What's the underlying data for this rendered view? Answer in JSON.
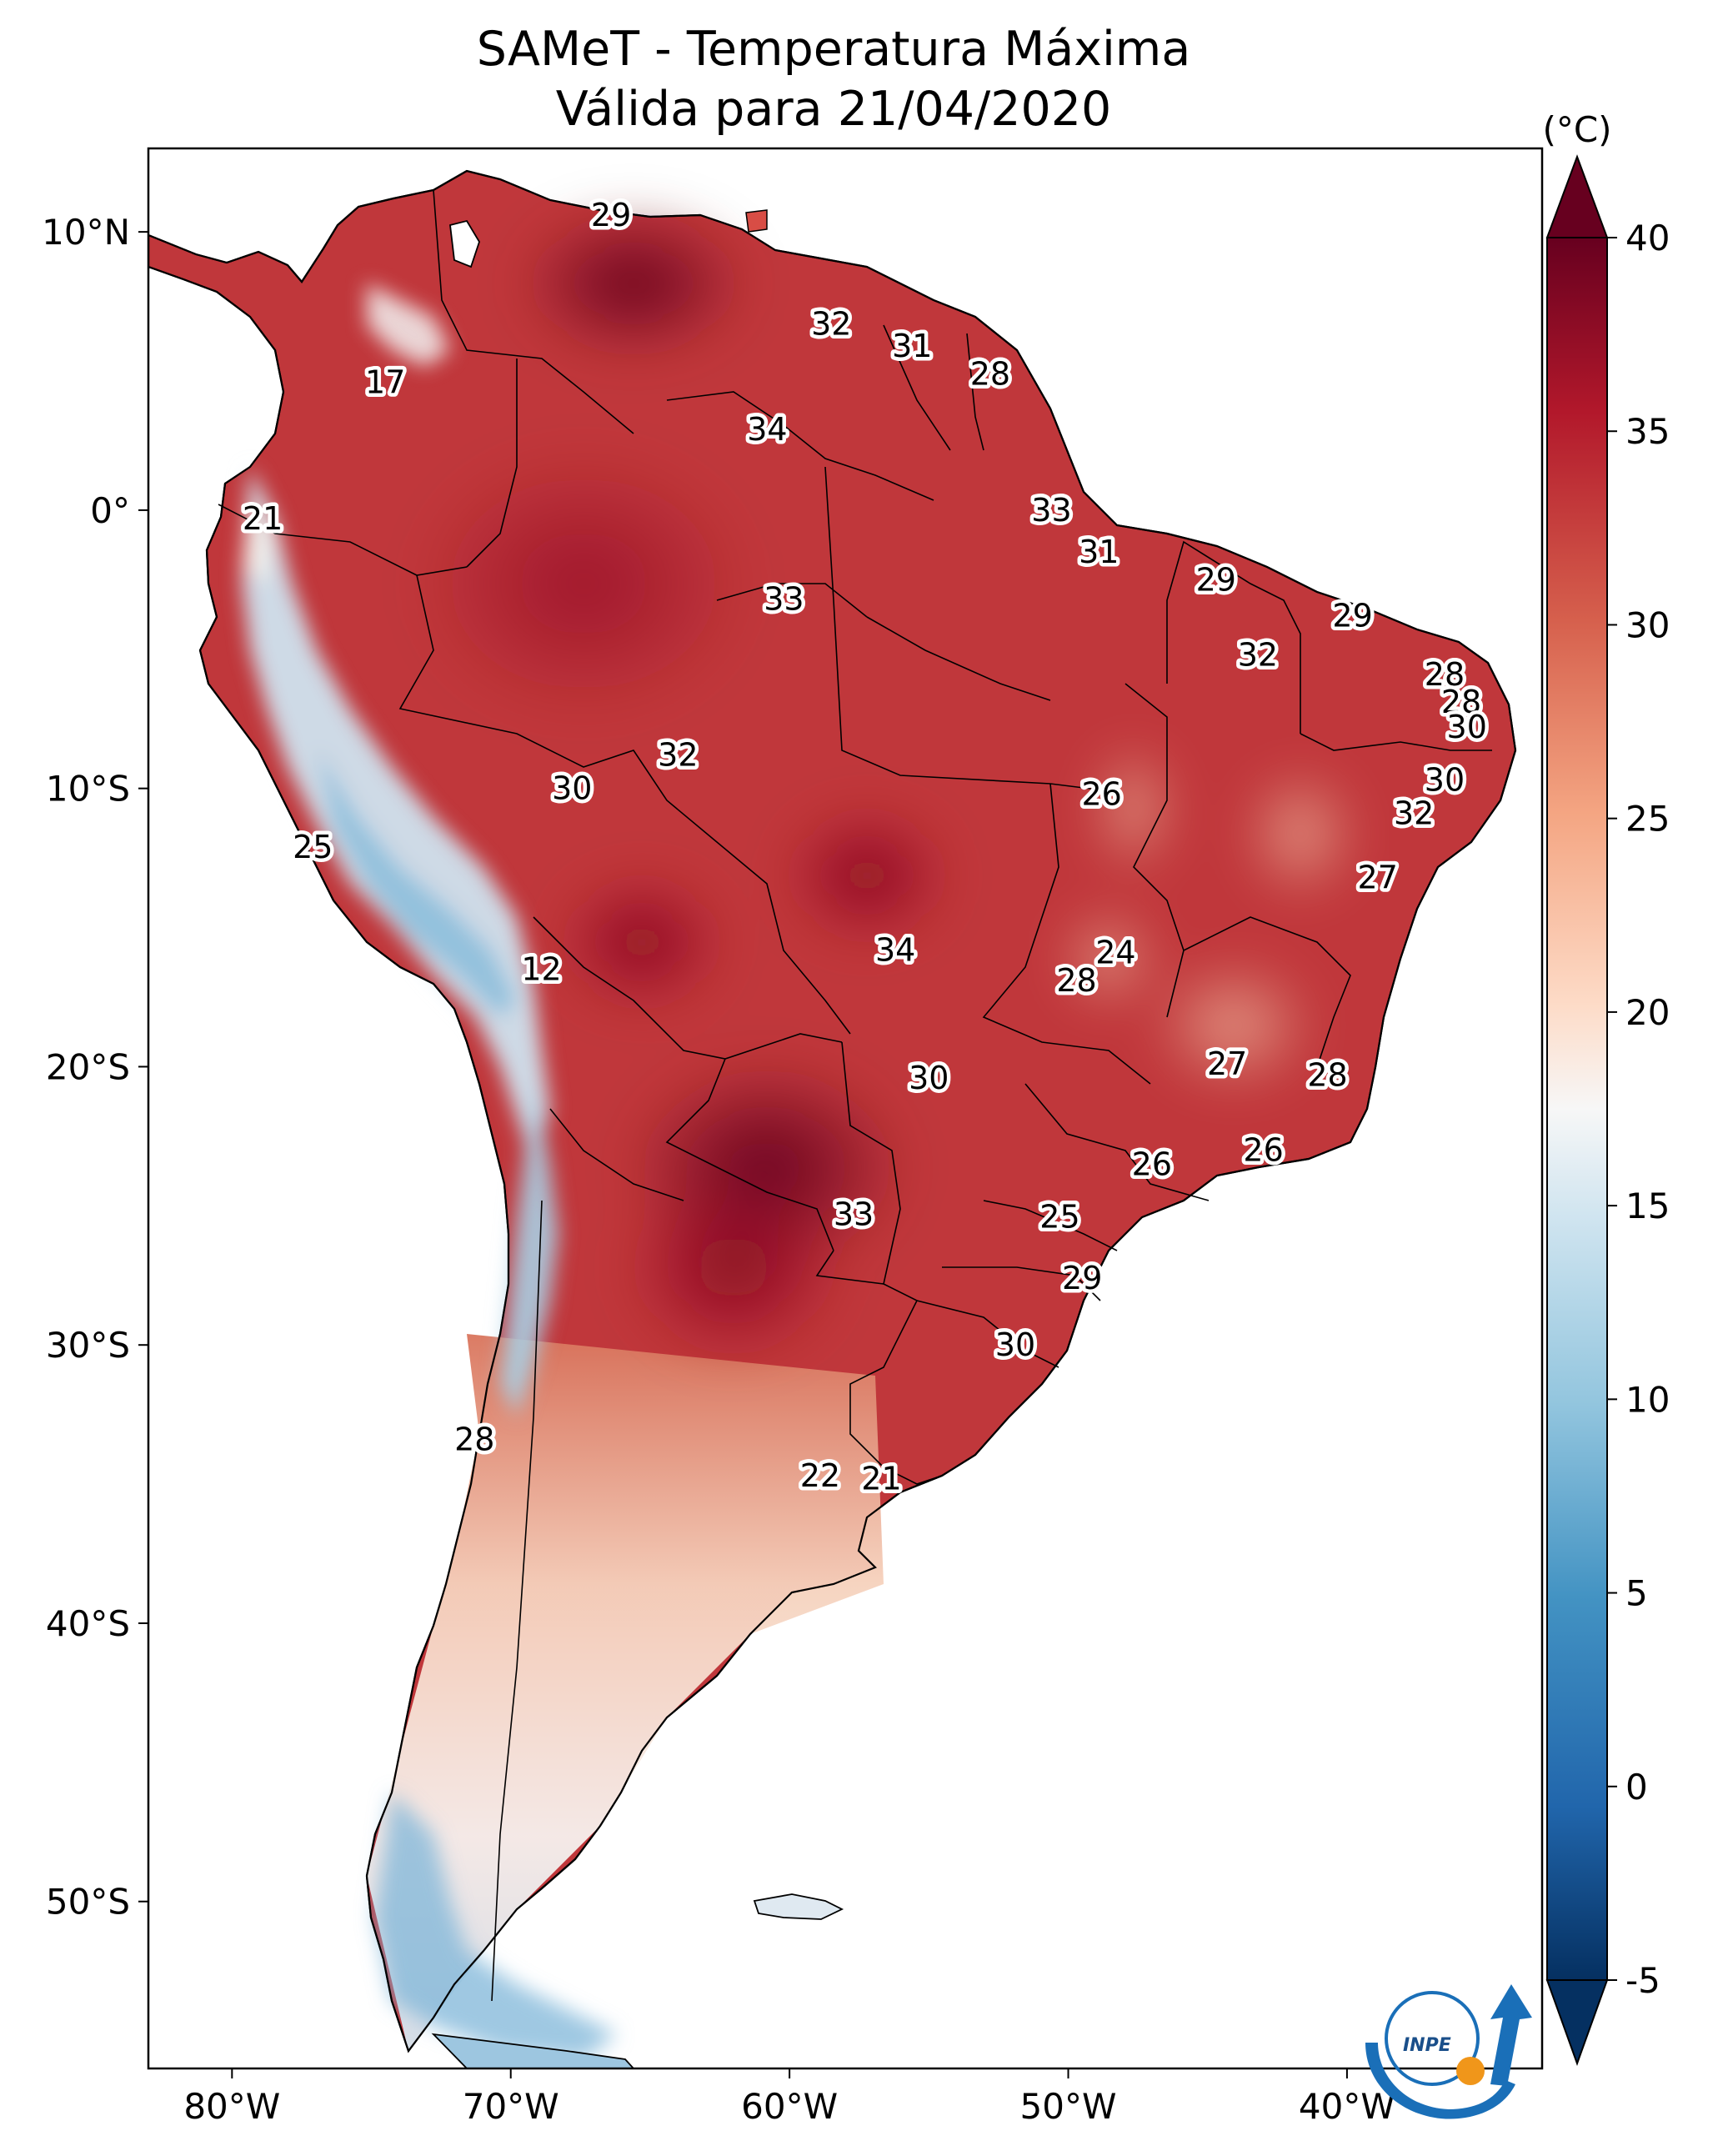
{
  "title_line1": "SAMeT - Temperatura Máxima",
  "title_line2": "Válida para 21/04/2020",
  "colorbar": {
    "unit": "(°C)",
    "min": -5,
    "max": 40,
    "ticks": [
      "40",
      "35",
      "30",
      "25",
      "20",
      "15",
      "10",
      "5",
      "0",
      "-5"
    ],
    "colormap": "RdBu_r"
  },
  "map": {
    "lon_range": [
      -83,
      -33
    ],
    "lat_range": [
      -56,
      13
    ],
    "lat_ticks": [
      "10°N",
      "0°",
      "10°S",
      "20°S",
      "30°S",
      "40°S",
      "50°S"
    ],
    "lon_ticks": [
      "80°W",
      "70°W",
      "60°W",
      "50°W",
      "40°W"
    ]
  },
  "labels": [
    {
      "value": "29",
      "lon": -66.4,
      "lat": 10.6
    },
    {
      "value": "17",
      "lon": -74.5,
      "lat": 4.6
    },
    {
      "value": "21",
      "lon": -78.9,
      "lat": -0.3
    },
    {
      "value": "32",
      "lon": -58.5,
      "lat": 6.7
    },
    {
      "value": "31",
      "lon": -55.6,
      "lat": 5.9
    },
    {
      "value": "28",
      "lon": -52.8,
      "lat": 4.9
    },
    {
      "value": "34",
      "lon": -60.8,
      "lat": 2.9
    },
    {
      "value": "33",
      "lon": -50.6,
      "lat": 0.0
    },
    {
      "value": "31",
      "lon": -48.9,
      "lat": -1.5
    },
    {
      "value": "29",
      "lon": -44.7,
      "lat": -2.5
    },
    {
      "value": "29",
      "lon": -39.8,
      "lat": -3.8
    },
    {
      "value": "33",
      "lon": -60.2,
      "lat": -3.2
    },
    {
      "value": "32",
      "lon": -43.2,
      "lat": -5.2
    },
    {
      "value": "28",
      "lon": -36.5,
      "lat": -5.9
    },
    {
      "value": "28",
      "lon": -35.9,
      "lat": -6.9
    },
    {
      "value": "30",
      "lon": -35.7,
      "lat": -7.8
    },
    {
      "value": "32",
      "lon": -64.0,
      "lat": -8.8
    },
    {
      "value": "30",
      "lon": -67.8,
      "lat": -10.0
    },
    {
      "value": "26",
      "lon": -48.8,
      "lat": -10.2
    },
    {
      "value": "30",
      "lon": -36.5,
      "lat": -9.7
    },
    {
      "value": "32",
      "lon": -37.6,
      "lat": -10.9
    },
    {
      "value": "25",
      "lon": -77.1,
      "lat": -12.1
    },
    {
      "value": "27",
      "lon": -38.9,
      "lat": -13.2
    },
    {
      "value": "34",
      "lon": -56.2,
      "lat": -15.8
    },
    {
      "value": "24",
      "lon": -48.3,
      "lat": -15.9
    },
    {
      "value": "28",
      "lon": -49.7,
      "lat": -16.9
    },
    {
      "value": "12",
      "lon": -68.9,
      "lat": -16.5
    },
    {
      "value": "27",
      "lon": -44.3,
      "lat": -19.9
    },
    {
      "value": "30",
      "lon": -55.0,
      "lat": -20.4
    },
    {
      "value": "28",
      "lon": -40.7,
      "lat": -20.3
    },
    {
      "value": "26",
      "lon": -43.0,
      "lat": -23.0
    },
    {
      "value": "26",
      "lon": -47.0,
      "lat": -23.5
    },
    {
      "value": "33",
      "lon": -57.7,
      "lat": -25.3
    },
    {
      "value": "25",
      "lon": -50.3,
      "lat": -25.4
    },
    {
      "value": "29",
      "lon": -49.5,
      "lat": -27.6
    },
    {
      "value": "30",
      "lon": -51.9,
      "lat": -30.0
    },
    {
      "value": "28",
      "lon": -71.3,
      "lat": -33.4
    },
    {
      "value": "22",
      "lon": -58.9,
      "lat": -34.7
    },
    {
      "value": "21",
      "lon": -56.7,
      "lat": -34.8
    }
  ],
  "logo": {
    "text": "INPE"
  },
  "colors": {
    "accent": "#f0961a",
    "logo_blue": "#1a6fb8"
  }
}
